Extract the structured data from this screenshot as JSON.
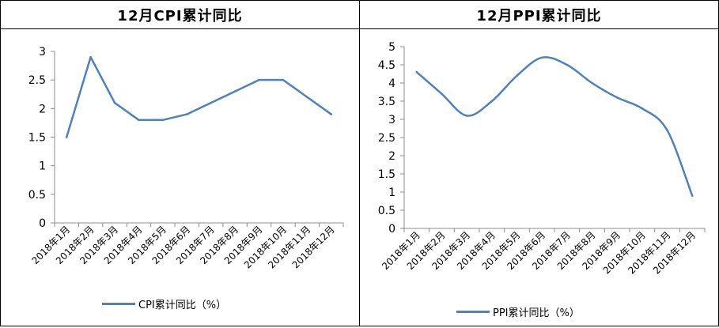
{
  "chart_data": [
    {
      "type": "line",
      "title": "12月CPI累计同比",
      "categories": [
        "2018年1月",
        "2018年2月",
        "2018年3月",
        "2018年4月",
        "2018年5月",
        "2018年6月",
        "2018年7月",
        "2018年8月",
        "2018年9月",
        "2018年10月",
        "2018年11月",
        "2018年12月"
      ],
      "series": [
        {
          "name": "CPI累计同比（%）",
          "values": [
            1.5,
            2.9,
            2.1,
            1.8,
            1.8,
            1.9,
            2.1,
            2.3,
            2.5,
            2.5,
            2.2,
            1.9
          ],
          "color": "#4f81bd"
        }
      ],
      "ylim": [
        0,
        3
      ],
      "yticks": [
        "0",
        "0.5",
        "1",
        "1.5",
        "2",
        "2.5",
        "3"
      ],
      "grid": false,
      "legend": "bottom",
      "smooth": false
    },
    {
      "type": "line",
      "title": "12月PPI累计同比",
      "categories": [
        "2018年1月",
        "2018年2月",
        "2018年3月",
        "2018年4月",
        "2018年5月",
        "2018年6月",
        "2018年7月",
        "2018年8月",
        "2018年9月",
        "2018年10月",
        "2018年11月",
        "2018年12月"
      ],
      "series": [
        {
          "name": "PPI累计同比（%）",
          "values": [
            4.3,
            3.7,
            3.1,
            3.5,
            4.2,
            4.7,
            4.5,
            4.0,
            3.6,
            3.3,
            2.7,
            0.9
          ],
          "color": "#4f81bd"
        }
      ],
      "ylim": [
        0,
        5
      ],
      "yticks": [
        "0",
        "0.5",
        "1",
        "1.5",
        "2",
        "2.5",
        "3",
        "3.5",
        "4",
        "4.5",
        "5"
      ],
      "grid": false,
      "legend": "bottom",
      "smooth": true
    }
  ]
}
